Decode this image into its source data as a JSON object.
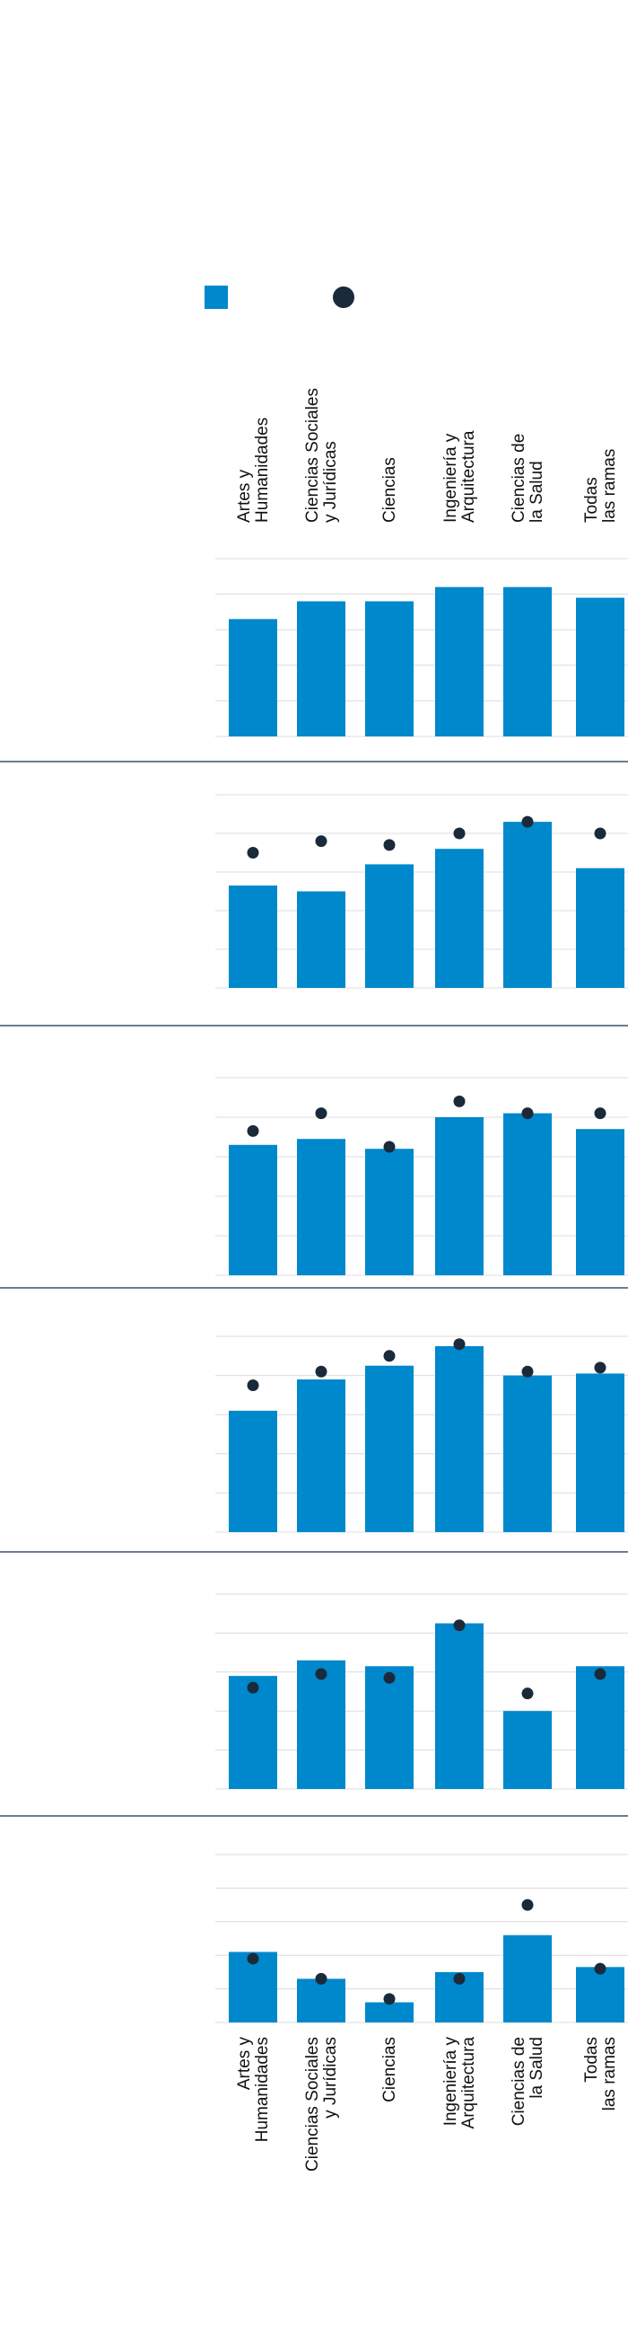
{
  "legend": {
    "bar_marker": "square",
    "dot_marker": "circle",
    "bar_color": "#0088cc",
    "dot_color": "#1b2a3a"
  },
  "colors": {
    "bar": "#0088cc",
    "dot": "#1b2a3a",
    "grid": "#dcdcdc",
    "separator": "#3b5170"
  },
  "chart_data": {
    "type": "bar",
    "categories": [
      [
        "Artes y",
        "Humanidades"
      ],
      [
        "Ciencias Sociales",
        "y Jurídicas"
      ],
      [
        "Ciencias"
      ],
      [
        "Ingeniería y",
        "Arquitectura"
      ],
      [
        "Ciencias de",
        "la Salud"
      ],
      [
        "Todas",
        "las ramas"
      ]
    ],
    "grid": true,
    "panels": [
      {
        "bars": [
          3.3,
          3.8,
          3.8,
          4.2,
          4.2,
          3.9
        ],
        "dots": null,
        "ylim": [
          0,
          5
        ]
      },
      {
        "bars": [
          2.65,
          2.5,
          3.2,
          3.6,
          4.3,
          3.1
        ],
        "dots": [
          3.5,
          3.8,
          3.7,
          4.0,
          4.3,
          4.0
        ],
        "ylim": [
          0,
          5
        ]
      },
      {
        "bars": [
          3.3,
          3.45,
          3.2,
          4.0,
          4.1,
          3.7
        ],
        "dots": [
          3.65,
          4.1,
          3.25,
          4.4,
          4.1,
          4.1
        ],
        "ylim": [
          0,
          5
        ]
      },
      {
        "bars": [
          3.1,
          3.9,
          4.25,
          4.75,
          4.0,
          4.05
        ],
        "dots": [
          3.75,
          4.1,
          4.5,
          4.8,
          4.1,
          4.2
        ],
        "ylim": [
          0,
          5
        ]
      },
      {
        "bars": [
          2.9,
          3.3,
          3.15,
          4.25,
          2.0,
          3.15
        ],
        "dots": [
          2.6,
          2.95,
          2.85,
          4.2,
          2.45,
          2.95
        ],
        "ylim": [
          0,
          5
        ]
      },
      {
        "bars": [
          2.1,
          1.3,
          0.6,
          1.5,
          2.6,
          1.65
        ],
        "dots": [
          1.9,
          1.3,
          0.7,
          1.3,
          3.5,
          1.6
        ],
        "ylim": [
          0,
          5
        ]
      }
    ]
  }
}
